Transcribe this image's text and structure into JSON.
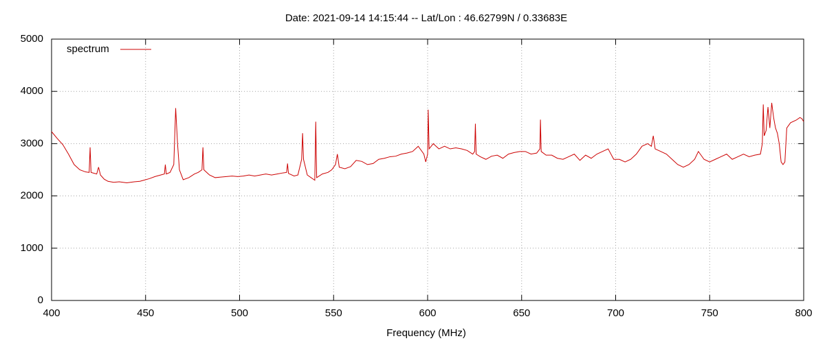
{
  "chart_data": {
    "type": "line",
    "title": "Date: 2021-09-14 14:15:44  --  Lat/Lon : 46.62799N / 0.33683E",
    "x_label": "Frequency (MHz)",
    "xlim": [
      400,
      800
    ],
    "xticks": [
      400,
      450,
      500,
      550,
      600,
      650,
      700,
      750,
      800
    ],
    "ylim": [
      0,
      5000
    ],
    "yticks": [
      0,
      1000,
      2000,
      3000,
      4000,
      5000
    ],
    "grid": true,
    "legend": "top-left",
    "series": [
      {
        "name": "spectrum",
        "color": "#cc0000",
        "x": [
          400,
          403,
          406,
          409,
          412,
          415,
          418,
          420,
          420.5,
          421,
          424,
          425,
          426,
          428,
          430,
          433,
          436,
          440,
          444,
          447,
          449,
          452,
          455,
          458,
          460,
          460.5,
          461,
          463,
          465,
          466,
          467,
          468,
          470,
          473,
          476,
          478,
          480,
          480.5,
          481,
          484,
          487,
          490,
          493,
          496,
          499,
          502,
          505,
          508,
          511,
          514,
          517,
          520,
          523,
          525,
          525.5,
          526,
          529,
          531,
          533,
          533.5,
          534,
          536,
          538,
          540,
          540.5,
          541,
          544,
          547,
          549,
          551,
          552,
          553,
          556,
          559,
          562,
          565,
          568,
          571,
          574,
          577,
          580,
          583,
          586,
          589,
          592,
          595,
          598,
          599,
          600,
          600.3,
          600.8,
          603,
          606,
          609,
          612,
          615,
          618,
          621,
          624,
          625,
          625.4,
          625.8,
          628,
          631,
          634,
          637,
          640,
          643,
          646,
          649,
          652,
          655,
          658,
          659.7,
          660,
          660.4,
          663,
          666,
          669,
          672,
          675,
          678,
          681,
          684,
          687,
          690,
          693,
          696,
          699,
          702,
          705,
          708,
          711,
          714,
          717,
          719,
          720,
          721,
          724,
          727,
          730,
          733,
          736,
          739,
          742,
          744,
          747,
          750,
          753,
          756,
          759,
          762,
          765,
          768,
          771,
          774,
          777,
          778,
          778.5,
          779,
          780,
          781,
          782,
          783,
          784,
          785,
          786,
          787,
          788,
          789,
          790,
          791,
          793,
          796,
          798,
          799,
          800
        ],
        "values": [
          3230,
          3100,
          2980,
          2800,
          2600,
          2500,
          2460,
          2450,
          2930,
          2450,
          2420,
          2550,
          2400,
          2320,
          2280,
          2260,
          2270,
          2250,
          2270,
          2280,
          2300,
          2330,
          2370,
          2400,
          2420,
          2600,
          2420,
          2450,
          2600,
          3680,
          3000,
          2500,
          2310,
          2350,
          2420,
          2450,
          2500,
          2930,
          2500,
          2400,
          2350,
          2360,
          2370,
          2380,
          2370,
          2380,
          2400,
          2380,
          2400,
          2420,
          2400,
          2420,
          2440,
          2450,
          2620,
          2430,
          2380,
          2400,
          2700,
          3200,
          2700,
          2400,
          2350,
          2300,
          3420,
          2350,
          2420,
          2450,
          2500,
          2600,
          2800,
          2550,
          2520,
          2560,
          2680,
          2660,
          2600,
          2620,
          2700,
          2720,
          2750,
          2760,
          2800,
          2820,
          2850,
          2950,
          2800,
          2650,
          2800,
          3650,
          2900,
          3000,
          2900,
          2950,
          2900,
          2920,
          2900,
          2870,
          2800,
          2850,
          3380,
          2800,
          2750,
          2700,
          2760,
          2780,
          2720,
          2800,
          2830,
          2850,
          2850,
          2800,
          2820,
          2900,
          3460,
          2850,
          2780,
          2780,
          2720,
          2700,
          2750,
          2800,
          2680,
          2780,
          2720,
          2800,
          2850,
          2900,
          2700,
          2700,
          2650,
          2700,
          2800,
          2950,
          3000,
          2950,
          3150,
          2900,
          2850,
          2800,
          2700,
          2600,
          2550,
          2600,
          2700,
          2850,
          2700,
          2650,
          2700,
          2750,
          2800,
          2700,
          2750,
          2800,
          2750,
          2780,
          2800,
          3000,
          3750,
          3150,
          3250,
          3700,
          3300,
          3780,
          3500,
          3300,
          3200,
          3000,
          2650,
          2600,
          2650,
          3300,
          3400,
          3450,
          3500,
          3480,
          3420
        ]
      }
    ]
  }
}
